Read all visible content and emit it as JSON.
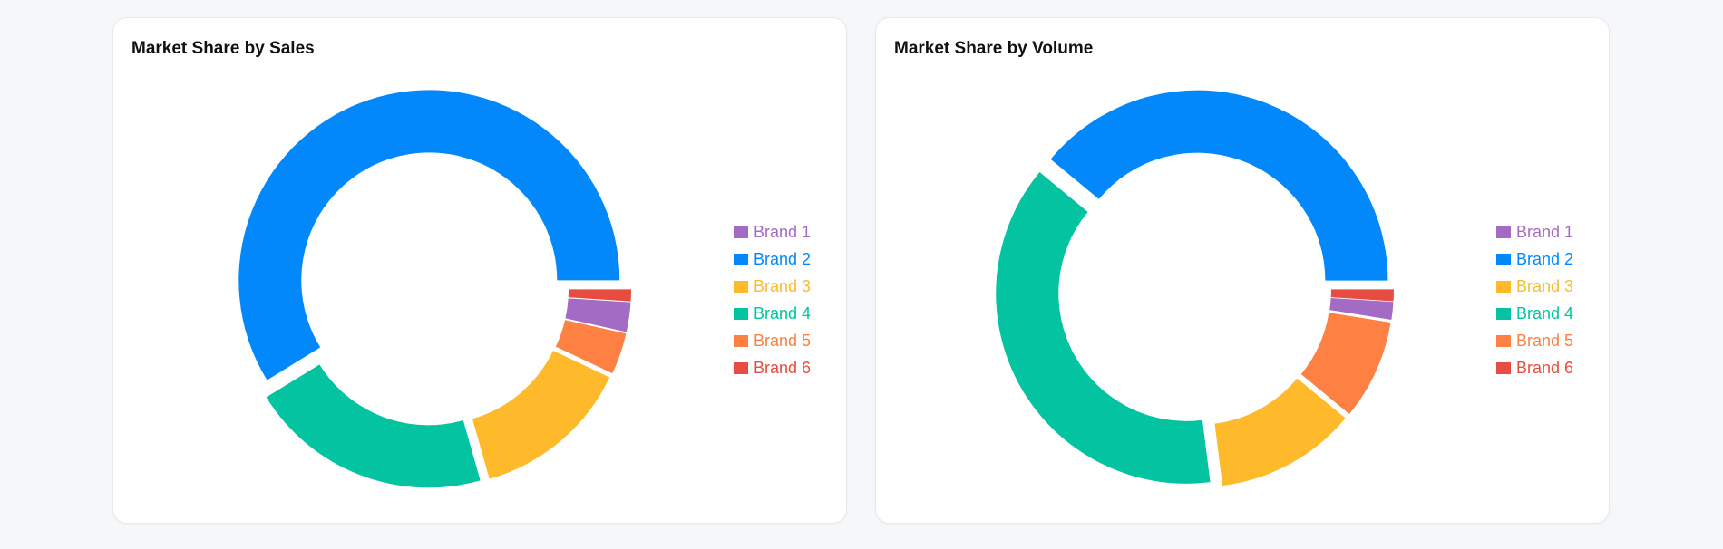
{
  "colors": {
    "Brand 1": "#a36bc3",
    "Brand 2": "#0388fc",
    "Brand 3": "#ffba2b",
    "Brand 4": "#03c3a0",
    "Brand 5": "#fe8043",
    "Brand 6": "#e64c3f"
  },
  "chart_data": [
    {
      "type": "pie",
      "subtype": "donut",
      "title": "Market Share by Sales",
      "legend_position": "right",
      "labels": [
        "Brand 1",
        "Brand 2",
        "Brand 3",
        "Brand 4",
        "Brand 5",
        "Brand 6"
      ],
      "segment_order": [
        "Brand 6",
        "Brand 1",
        "Brand 5",
        "Brand 3",
        "Brand 4",
        "Brand 2"
      ],
      "values": [
        2.5,
        58.5,
        13.5,
        20.5,
        3.5,
        1.0
      ]
    },
    {
      "type": "pie",
      "subtype": "donut",
      "title": "Market Share by Volume",
      "legend_position": "right",
      "labels": [
        "Brand 1",
        "Brand 2",
        "Brand 3",
        "Brand 4",
        "Brand 5",
        "Brand 6"
      ],
      "segment_order": [
        "Brand 6",
        "Brand 1",
        "Brand 5",
        "Brand 3",
        "Brand 4",
        "Brand 2"
      ],
      "values": [
        1.5,
        39.0,
        12.0,
        38.0,
        8.5,
        1.0
      ]
    }
  ]
}
